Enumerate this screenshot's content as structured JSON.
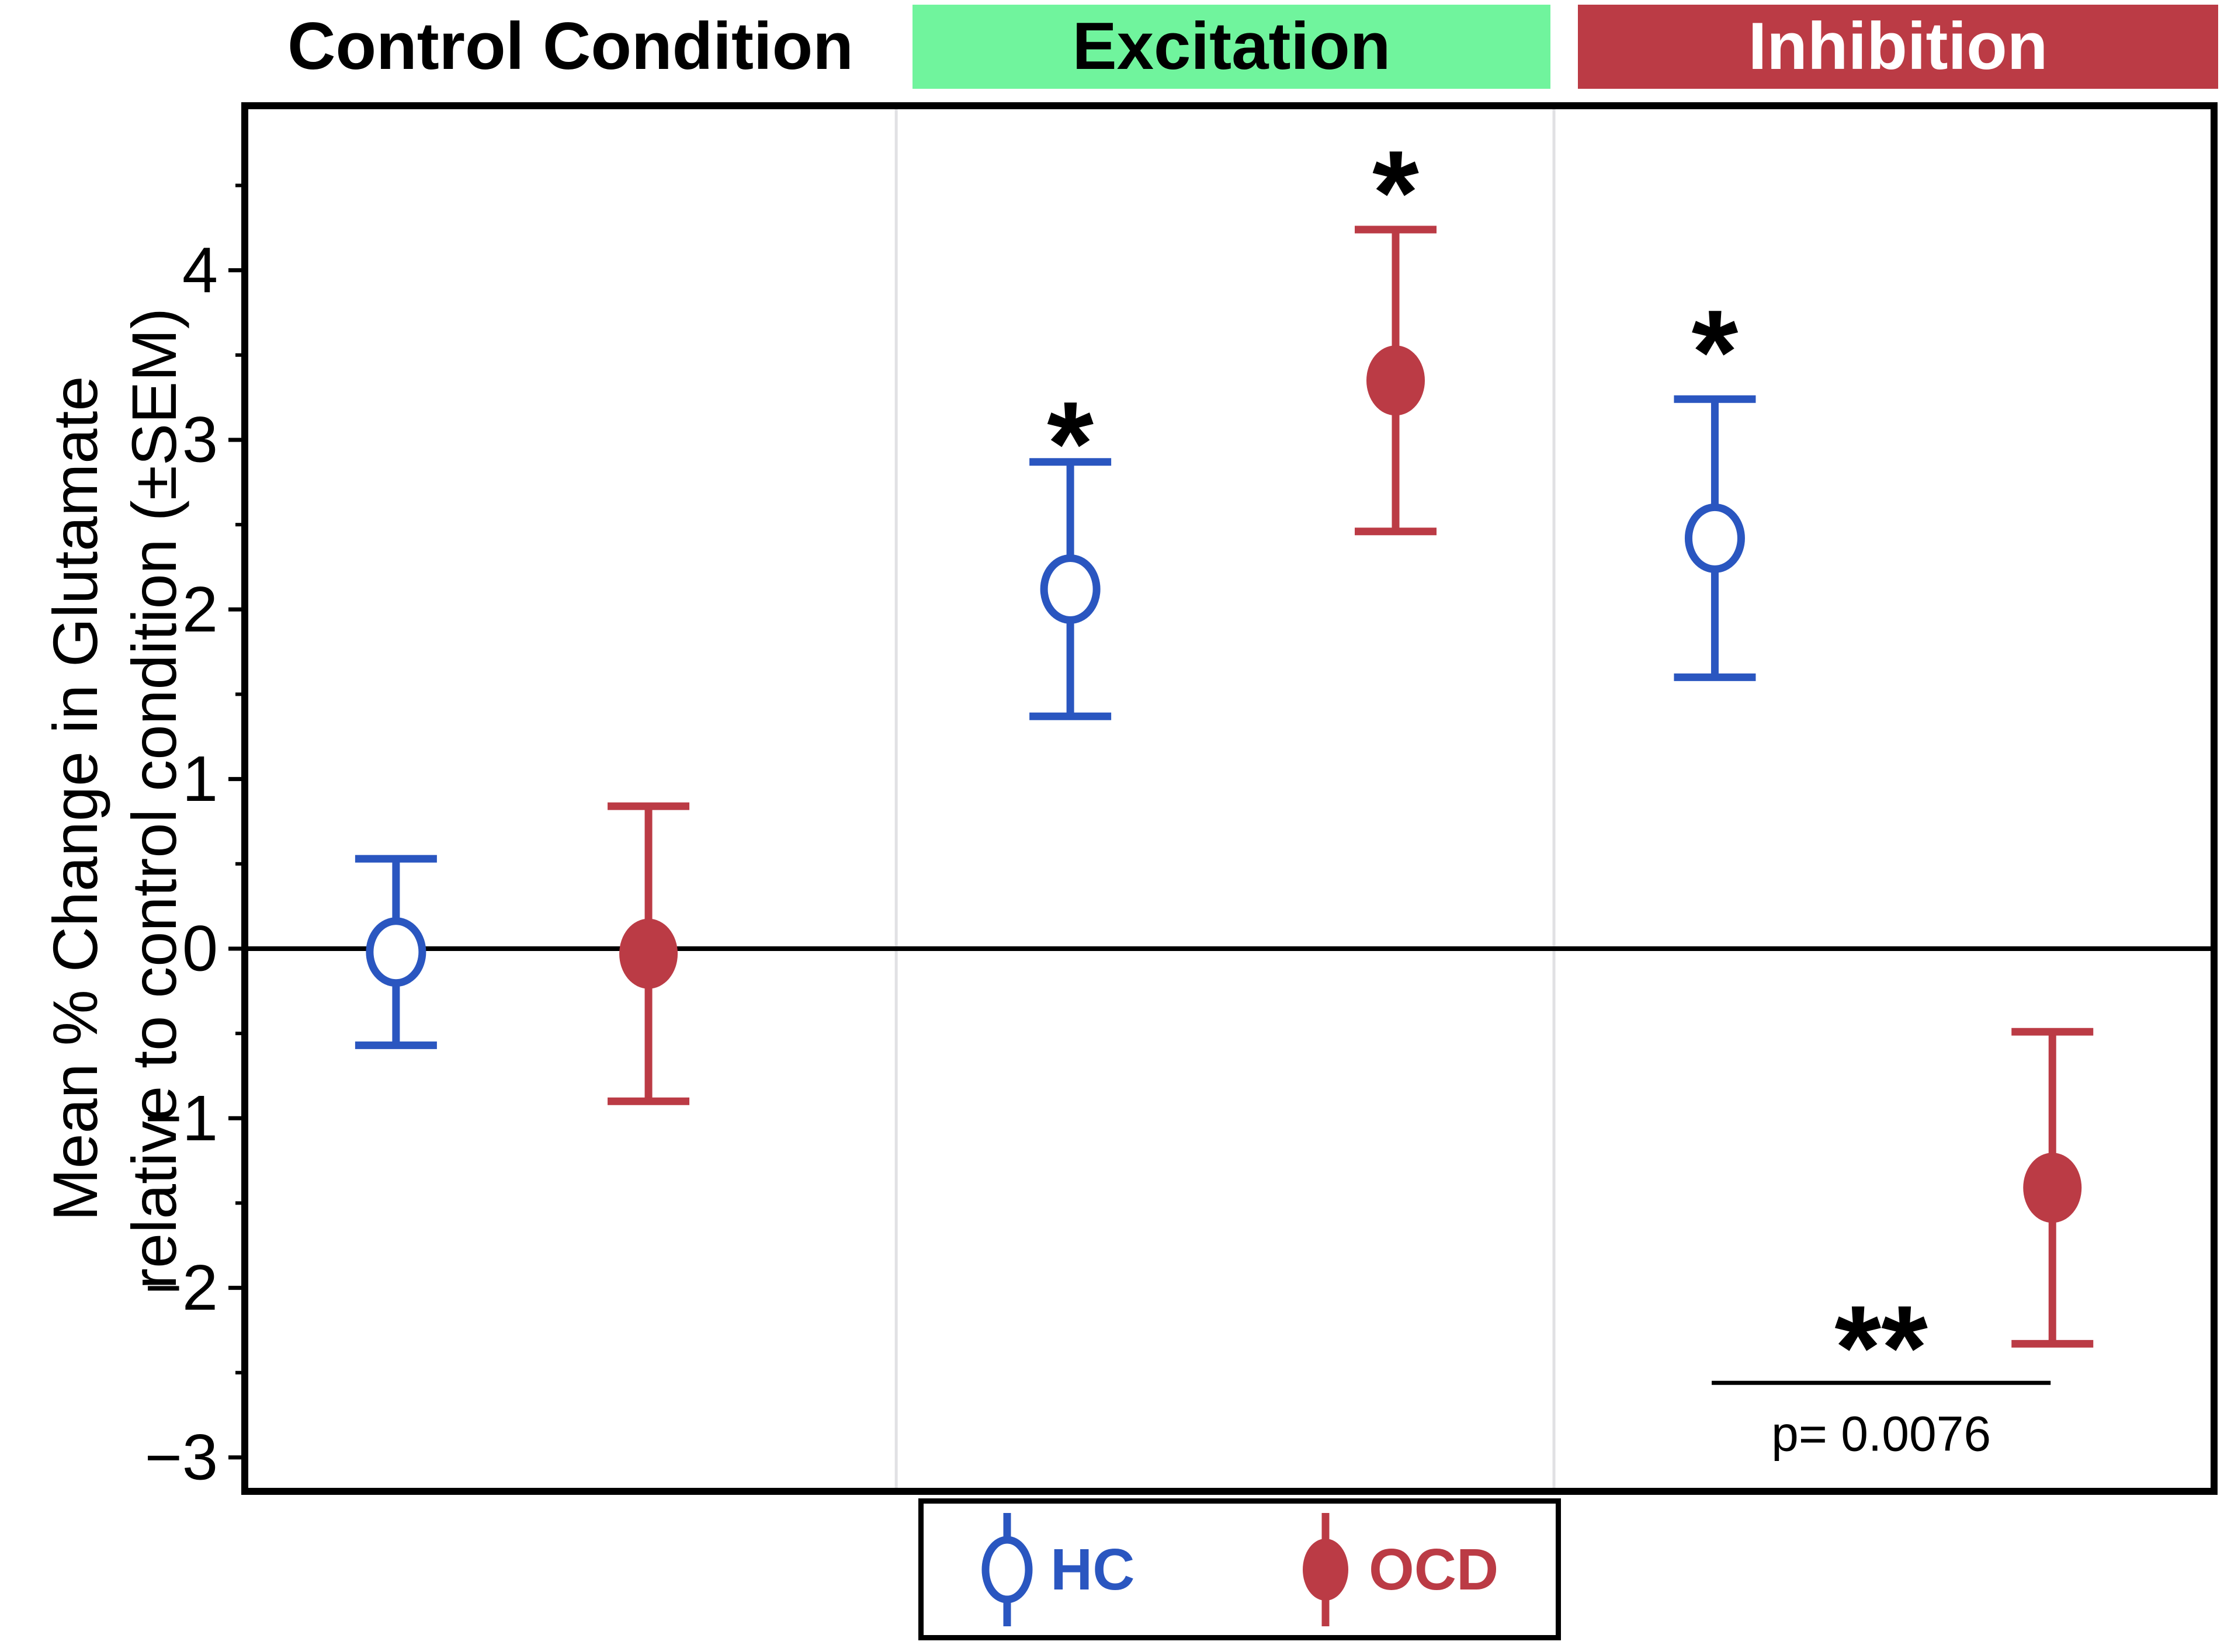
{
  "chart_data": {
    "type": "scatter",
    "title": "",
    "ylabel_line1": "Mean % Change in Glutamate",
    "ylabel_line2": "relative to control condition (±SEM)",
    "y_axis": {
      "min": -3.2,
      "max": 4.97,
      "major_ticks": [
        {
          "value": 4,
          "label": "4"
        },
        {
          "value": 3,
          "label": "3"
        },
        {
          "value": 2,
          "label": "2"
        },
        {
          "value": 1,
          "label": "1"
        },
        {
          "value": 0,
          "label": "0"
        },
        {
          "value": -1,
          "label": "−1"
        },
        {
          "value": -2,
          "label": "−2"
        },
        {
          "value": -3,
          "label": "−3"
        }
      ],
      "minor_ticks": [
        4.5,
        3.5,
        2.5,
        1.5,
        0.5,
        -0.5,
        -1.5,
        -2.5
      ],
      "zero_line": 0,
      "grid": false
    },
    "panels": [
      {
        "label": "Control Condition",
        "bg": "none",
        "text_color": "#000000",
        "x_start_frac": 0.0,
        "x_end_frac": 0.3308
      },
      {
        "label": "Excitation",
        "bg": "#70f49d",
        "text_color": "#000000",
        "x_start_frac": 0.3308,
        "x_end_frac": 0.6648
      },
      {
        "label": "Inhibition",
        "bg": "#bb3b45",
        "text_color": "#ffffff",
        "x_start_frac": 0.6648,
        "x_end_frac": 1.0
      }
    ],
    "separator_color": "#e1e1e4",
    "series": [
      {
        "name": "HC",
        "color": "#2a56c0",
        "marker": "open-circle",
        "points": [
          {
            "condition": "Control Condition",
            "x_frac": 0.0768,
            "mean": -0.02,
            "sem": 0.55,
            "upper": 0.53,
            "lower": -0.57,
            "star": null,
            "star_y": null
          },
          {
            "condition": "Excitation",
            "x_frac": 0.4192,
            "mean": 2.12,
            "sem": 0.75,
            "upper": 2.87,
            "lower": 1.37,
            "star": "*",
            "star_y": 3.12
          },
          {
            "condition": "Inhibition",
            "x_frac": 0.7465,
            "mean": 2.42,
            "sem": 0.82,
            "upper": 3.24,
            "lower": 1.6,
            "star": "*",
            "star_y": 3.66
          }
        ]
      },
      {
        "name": "OCD",
        "color": "#bb3b45",
        "marker": "filled-circle",
        "points": [
          {
            "condition": "Control Condition",
            "x_frac": 0.205,
            "mean": -0.03,
            "sem": 0.87,
            "upper": 0.84,
            "lower": -0.9,
            "star": null,
            "star_y": null
          },
          {
            "condition": "Excitation",
            "x_frac": 0.5844,
            "mean": 3.35,
            "sem": 0.89,
            "upper": 4.24,
            "lower": 2.46,
            "star": "*",
            "star_y": 4.6
          },
          {
            "condition": "Inhibition",
            "x_frac": 0.9179,
            "mean": -1.41,
            "sem": 0.92,
            "upper": -0.49,
            "lower": -2.33,
            "star": null,
            "star_y": null
          }
        ]
      }
    ],
    "comparison": {
      "condition": "Inhibition",
      "between": [
        "HC",
        "OCD"
      ],
      "stars": "**",
      "stars_y": -2.21,
      "line_y": -2.56,
      "line_from_frac": 0.7449,
      "line_to_frac": 0.917,
      "p_label": "p= 0.0076",
      "p_y": -2.96
    },
    "legend_position": "bottom-center"
  }
}
